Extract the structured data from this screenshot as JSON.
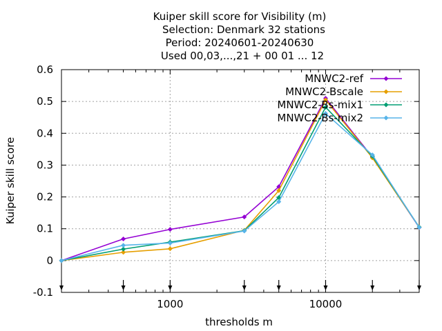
{
  "chart_data": {
    "type": "line",
    "title_lines": [
      "Kuiper skill score  for Visibility (m)",
      "Selection: Denmark     32 stations",
      "Period: 20240601-20240630",
      "Used 00,03,...,21 + 00 01 ... 12"
    ],
    "xlabel": "thresholds m",
    "ylabel": "Kuiper skill score",
    "xscale": "log",
    "xlim": [
      200,
      40000
    ],
    "ylim": [
      -0.1,
      0.6
    ],
    "xticks": [
      1000,
      10000
    ],
    "xtick_labels": [
      "1000",
      "10000"
    ],
    "yticks": [
      -0.1,
      0,
      0.1,
      0.2,
      0.3,
      0.4,
      0.5,
      0.6
    ],
    "ytick_labels": [
      "-0.1",
      "0",
      "0.1",
      "0.2",
      "0.3",
      "0.4",
      "0.5",
      "0.6"
    ],
    "threshold_markers": [
      200,
      500,
      1000,
      3000,
      5000,
      10000,
      20000,
      40000
    ],
    "grid": true,
    "legend_position": "top-right",
    "x": [
      200,
      500,
      1000,
      3000,
      5000,
      10000,
      20000,
      40000
    ],
    "series": [
      {
        "name": "MNWC2-ref",
        "color": "#9400d3",
        "values": [
          0.0,
          0.068,
          0.098,
          0.137,
          0.232,
          0.51,
          0.325,
          0.104
        ]
      },
      {
        "name": "MNWC2-Bscale",
        "color": "#e69f00",
        "values": [
          0.0,
          0.026,
          0.037,
          0.095,
          0.22,
          0.505,
          0.323,
          0.105
        ]
      },
      {
        "name": "MNWC2-Bs-mix1",
        "color": "#009e73",
        "values": [
          0.0,
          0.036,
          0.058,
          0.094,
          0.198,
          0.482,
          0.328,
          0.105
        ]
      },
      {
        "name": "MNWC2-Bs-mix2",
        "color": "#56b4e9",
        "values": [
          0.0,
          0.048,
          0.055,
          0.093,
          0.185,
          0.462,
          0.332,
          0.104
        ]
      }
    ]
  }
}
